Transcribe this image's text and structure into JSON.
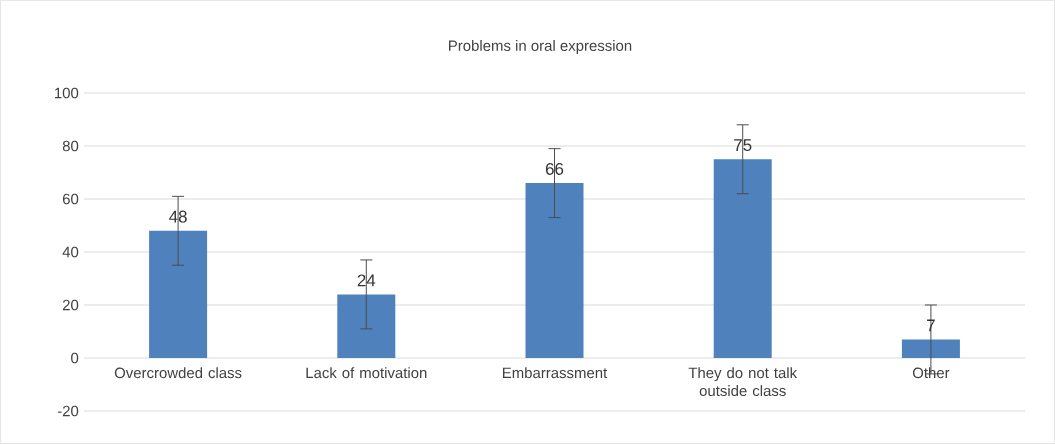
{
  "chart_data": {
    "type": "bar",
    "title": "Problems in oral expression",
    "categories": [
      "Overcrowded class",
      "Lack of motivation",
      "Embarrassment",
      "They do not talk outside class",
      "Other"
    ],
    "values": [
      48,
      24,
      66,
      75,
      7
    ],
    "errors": [
      13,
      13,
      13,
      13,
      13
    ],
    "color": "#4f81bd",
    "data_labels": true,
    "ylim": [
      -20,
      100
    ],
    "yticks": [
      -20,
      0,
      20,
      40,
      60,
      80,
      100
    ],
    "grid": "y"
  }
}
